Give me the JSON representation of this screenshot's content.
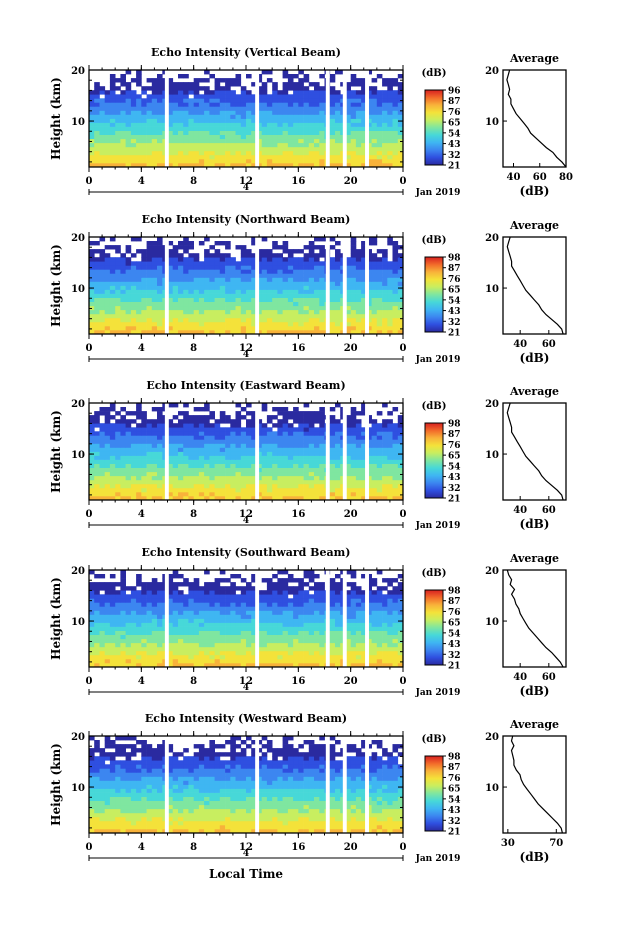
{
  "figure": {
    "xlabel": "Local Time",
    "date_label": "Jan 2019",
    "day_marker": "4",
    "cb_unit": "(dB)",
    "avg_title": "Average",
    "avg_xlabel": "(dB)",
    "colormap": [
      "#2a2aa0",
      "#2f4fe0",
      "#3c86f0",
      "#3fb6f2",
      "#47d8d8",
      "#7fe6a0",
      "#c8ee60",
      "#f4e23a",
      "#f8b23a",
      "#f26a2a",
      "#d82020"
    ]
  },
  "chart_data": [
    {
      "type": "heatmap",
      "title": "Echo Intensity (Vertical Beam)",
      "ylabel": "Height (km)",
      "x_ticks": [
        "0",
        "4",
        "8",
        "12",
        "16",
        "20",
        "0"
      ],
      "xlim": [
        0,
        24
      ],
      "y_ticks": [
        "20",
        "10"
      ],
      "ylim": [
        1,
        20
      ],
      "colorbar_ticks": [
        "96",
        "87",
        "76",
        "65",
        "54",
        "43",
        "32",
        "21"
      ],
      "data_gaps_hours": [
        [
          5.8,
          6.1
        ],
        [
          12.7,
          13.0
        ],
        [
          18.1,
          18.4
        ],
        [
          19.4,
          19.7
        ],
        [
          21.1,
          21.4
        ]
      ],
      "average_profile": {
        "x_ticks": [
          "40",
          "60",
          "80"
        ],
        "xlim": [
          32,
          80
        ],
        "y_ticks": [
          "20",
          "10"
        ],
        "ylim": [
          1,
          20
        ],
        "values_dB": [
          80,
          77,
          73,
          70,
          65,
          61,
          57,
          53,
          51,
          48,
          45,
          42,
          40,
          38,
          38,
          36,
          37,
          36,
          35,
          36,
          37
        ]
      }
    },
    {
      "type": "heatmap",
      "title": "Echo Intensity (Northward Beam)",
      "ylabel": "Height (km)",
      "x_ticks": [
        "0",
        "4",
        "8",
        "12",
        "16",
        "20",
        "0"
      ],
      "xlim": [
        0,
        24
      ],
      "y_ticks": [
        "20",
        "10"
      ],
      "ylim": [
        1,
        20
      ],
      "colorbar_ticks": [
        "98",
        "87",
        "76",
        "65",
        "54",
        "43",
        "32",
        "21"
      ],
      "data_gaps_hours": [
        [
          5.8,
          6.1
        ],
        [
          12.7,
          13.0
        ],
        [
          18.1,
          18.4
        ],
        [
          19.4,
          19.7
        ],
        [
          21.1,
          21.4
        ]
      ],
      "average_profile": {
        "x_ticks": [
          "40",
          "60"
        ],
        "xlim": [
          28,
          72
        ],
        "y_ticks": [
          "20",
          "10"
        ],
        "ylim": [
          1,
          20
        ],
        "values_dB": [
          70,
          69,
          66,
          62,
          58,
          55,
          53,
          50,
          47,
          44,
          42,
          40,
          38,
          36,
          34,
          34,
          33,
          32,
          31,
          32,
          33
        ]
      }
    },
    {
      "type": "heatmap",
      "title": "Echo Intensity (Eastward Beam)",
      "ylabel": "Height (km)",
      "x_ticks": [
        "0",
        "4",
        "8",
        "12",
        "16",
        "20",
        "0"
      ],
      "xlim": [
        0,
        24
      ],
      "y_ticks": [
        "20",
        "10"
      ],
      "ylim": [
        1,
        20
      ],
      "colorbar_ticks": [
        "98",
        "87",
        "76",
        "65",
        "54",
        "43",
        "32",
        "21"
      ],
      "data_gaps_hours": [
        [
          5.8,
          6.1
        ],
        [
          12.7,
          13.0
        ],
        [
          18.1,
          18.4
        ],
        [
          19.4,
          19.7
        ],
        [
          21.1,
          21.4
        ]
      ],
      "average_profile": {
        "x_ticks": [
          "40",
          "60"
        ],
        "xlim": [
          28,
          72
        ],
        "y_ticks": [
          "20",
          "10"
        ],
        "ylim": [
          1,
          20
        ],
        "values_dB": [
          70,
          69,
          66,
          62,
          58,
          55,
          53,
          50,
          47,
          44,
          42,
          40,
          38,
          36,
          34,
          34,
          33,
          32,
          31,
          32,
          33
        ]
      }
    },
    {
      "type": "heatmap",
      "title": "Echo Intensity (Southward Beam)",
      "ylabel": "Height (km)",
      "x_ticks": [
        "0",
        "4",
        "8",
        "12",
        "16",
        "20",
        "0"
      ],
      "xlim": [
        0,
        24
      ],
      "y_ticks": [
        "20",
        "10"
      ],
      "ylim": [
        1,
        20
      ],
      "colorbar_ticks": [
        "98",
        "87",
        "76",
        "65",
        "54",
        "43",
        "32",
        "21"
      ],
      "data_gaps_hours": [
        [
          5.8,
          6.1
        ],
        [
          12.7,
          13.0
        ],
        [
          18.1,
          18.4
        ],
        [
          19.4,
          19.7
        ],
        [
          21.1,
          21.4
        ]
      ],
      "average_profile": {
        "x_ticks": [
          "40",
          "60"
        ],
        "xlim": [
          28,
          72
        ],
        "y_ticks": [
          "20",
          "10"
        ],
        "ylim": [
          1,
          20
        ],
        "values_dB": [
          70,
          68,
          65,
          62,
          58,
          55,
          52,
          49,
          46,
          44,
          42,
          40,
          39,
          37,
          36,
          34,
          36,
          33,
          34,
          32,
          31
        ]
      }
    },
    {
      "type": "heatmap",
      "title": "Echo Intensity (Westward Beam)",
      "ylabel": "Height (km)",
      "x_ticks": [
        "0",
        "4",
        "8",
        "12",
        "16",
        "20",
        "0"
      ],
      "xlim": [
        0,
        24
      ],
      "y_ticks": [
        "20",
        "10"
      ],
      "ylim": [
        1,
        20
      ],
      "colorbar_ticks": [
        "98",
        "87",
        "76",
        "65",
        "54",
        "43",
        "32",
        "21"
      ],
      "data_gaps_hours": [
        [
          5.8,
          6.1
        ],
        [
          12.7,
          13.0
        ],
        [
          18.1,
          18.4
        ],
        [
          19.4,
          19.7
        ],
        [
          21.1,
          21.4
        ]
      ],
      "average_profile": {
        "x_ticks": [
          "30",
          "70"
        ],
        "xlim": [
          26,
          78
        ],
        "y_ticks": [
          "20",
          "10"
        ],
        "ylim": [
          1,
          20
        ],
        "values_dB": [
          75,
          74,
          71,
          67,
          63,
          59,
          55,
          52,
          49,
          46,
          43,
          41,
          40,
          37,
          35,
          35,
          34,
          33,
          35,
          33,
          34
        ]
      }
    }
  ]
}
